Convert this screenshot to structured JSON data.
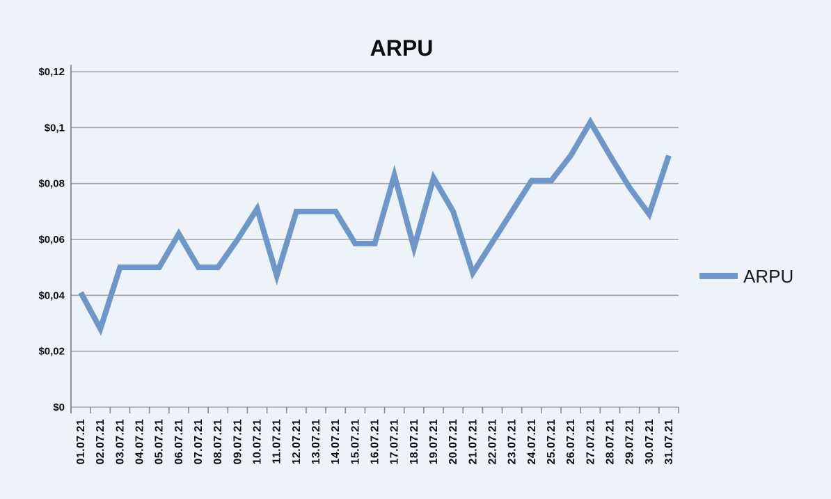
{
  "title": "ARPU",
  "legend": {
    "label": "ARPU",
    "position": "right"
  },
  "colors": {
    "background": "#eef2f9",
    "line": "#6e96c8",
    "gridline": "#a4a4a4",
    "axis": "#8a8a8a",
    "text": "#0d0d0d",
    "legend_text": "#1a1a1a"
  },
  "chart_data": {
    "type": "line",
    "title": "ARPU",
    "xlabel": "",
    "ylabel": "",
    "grid": true,
    "legend_position": "right",
    "ylim": [
      0,
      0.12
    ],
    "y_ticks": [
      {
        "value": 0,
        "label": "$0"
      },
      {
        "value": 0.02,
        "label": "$0,02"
      },
      {
        "value": 0.04,
        "label": "$0,04"
      },
      {
        "value": 0.06,
        "label": "$0,06"
      },
      {
        "value": 0.08,
        "label": "$0,08"
      },
      {
        "value": 0.1,
        "label": "$0,1"
      },
      {
        "value": 0.12,
        "label": "$0,12"
      }
    ],
    "categories": [
      "01.07.21",
      "02.07.21",
      "03.07.21",
      "04.07.21",
      "05.07.21",
      "06.07.21",
      "07.07.21",
      "08.07.21",
      "09.07.21",
      "10.07.21",
      "11.07.21",
      "12.07.21",
      "13.07.21",
      "14.07.21",
      "15.07.21",
      "16.07.21",
      "17.07.21",
      "18.07.21",
      "19.07.21",
      "20.07.21",
      "21.07.21",
      "22.07.21",
      "23.07.21",
      "24.07.21",
      "25.07.21",
      "26.07.21",
      "27.07.21",
      "28.07.21",
      "29.07.21",
      "30.07.21",
      "31.07.21"
    ],
    "series": [
      {
        "name": "ARPU",
        "values": [
          0.041,
          0.028,
          0.05,
          0.05,
          0.05,
          0.062,
          0.05,
          0.05,
          0.06,
          0.071,
          0.047,
          0.07,
          0.07,
          0.07,
          0.0585,
          0.0585,
          0.083,
          0.057,
          0.082,
          0.07,
          0.048,
          0.059,
          0.07,
          0.081,
          0.081,
          0.09,
          0.102,
          0.09,
          0.0785,
          0.069,
          0.09
        ]
      }
    ]
  }
}
